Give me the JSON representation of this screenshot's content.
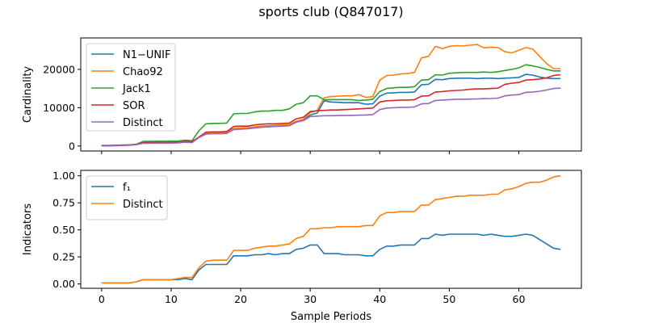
{
  "figure_title": "sports club (Q847017)",
  "shared_xlabel": "Sample Periods",
  "chart_data": [
    {
      "type": "line",
      "title": "",
      "xlabel": "",
      "ylabel": "Cardinality",
      "xlim": [
        -3,
        69
      ],
      "ylim": [
        -1300,
        28200
      ],
      "xticks": [
        0,
        10,
        20,
        30,
        40,
        50,
        60
      ],
      "yticks": [
        0,
        10000,
        20000
      ],
      "ytick_labels": [
        "0",
        "10000",
        "20000"
      ],
      "legend_position": "upper-left",
      "x": [
        0,
        1,
        2,
        3,
        4,
        5,
        6,
        7,
        8,
        9,
        10,
        11,
        12,
        13,
        14,
        15,
        16,
        17,
        18,
        19,
        20,
        21,
        22,
        23,
        24,
        25,
        26,
        27,
        28,
        29,
        30,
        31,
        32,
        33,
        34,
        35,
        36,
        37,
        38,
        39,
        40,
        41,
        42,
        43,
        44,
        45,
        46,
        47,
        48,
        49,
        50,
        51,
        52,
        53,
        54,
        55,
        56,
        57,
        58,
        59,
        60,
        61,
        62,
        63,
        64,
        65,
        66
      ],
      "series": [
        {
          "name": "N1−UNIF",
          "color": "#1f77b4",
          "values": [
            100,
            100,
            150,
            200,
            250,
            400,
            900,
            900,
            950,
            950,
            950,
            1000,
            1200,
            1100,
            2300,
            3300,
            3400,
            3400,
            3500,
            4500,
            4600,
            4700,
            4900,
            5100,
            5200,
            5300,
            5400,
            5500,
            6300,
            6700,
            8100,
            8600,
            11800,
            11500,
            11400,
            11300,
            11300,
            11300,
            10900,
            11000,
            13000,
            13800,
            13900,
            14000,
            14000,
            14100,
            16000,
            16100,
            17400,
            17300,
            17600,
            17700,
            17700,
            17700,
            17600,
            17700,
            17700,
            17600,
            17700,
            17800,
            17900,
            18700,
            18500,
            18000,
            17700,
            17600,
            17600
          ]
        },
        {
          "name": "Chao92",
          "color": "#ff7f0e",
          "values": [
            100,
            100,
            150,
            200,
            250,
            450,
            900,
            900,
            950,
            950,
            950,
            1000,
            1200,
            1100,
            2400,
            3400,
            3500,
            3500,
            3600,
            4600,
            4700,
            4800,
            5000,
            5200,
            5300,
            5400,
            5500,
            5600,
            6500,
            7000,
            8700,
            9300,
            12600,
            12900,
            13000,
            13100,
            13100,
            13400,
            12700,
            12900,
            17200,
            18400,
            18500,
            18800,
            18900,
            19200,
            23000,
            23400,
            26000,
            25400,
            26000,
            26200,
            26100,
            26300,
            26500,
            25600,
            25800,
            25700,
            24600,
            24300,
            25000,
            25700,
            25300,
            23400,
            21500,
            20200,
            20200
          ]
        },
        {
          "name": "Jack1",
          "color": "#2ca02c",
          "values": [
            150,
            150,
            200,
            250,
            300,
            500,
            1200,
            1200,
            1250,
            1250,
            1250,
            1300,
            1500,
            1400,
            4000,
            5800,
            5900,
            5900,
            6000,
            8400,
            8500,
            8500,
            8900,
            9100,
            9100,
            9300,
            9300,
            9700,
            10900,
            11300,
            13100,
            13100,
            12100,
            12100,
            12100,
            12100,
            12100,
            11900,
            12000,
            12200,
            14200,
            15000,
            15200,
            15300,
            15300,
            15500,
            17200,
            17300,
            18600,
            18500,
            19000,
            19100,
            19200,
            19200,
            19200,
            19300,
            19200,
            19400,
            19700,
            20000,
            20400,
            21200,
            20900,
            20500,
            20000,
            19600,
            19600
          ]
        },
        {
          "name": "SOR",
          "color": "#d62728",
          "values": [
            100,
            100,
            150,
            200,
            250,
            400,
            900,
            900,
            950,
            950,
            950,
            1000,
            1200,
            1100,
            2300,
            3600,
            3700,
            3700,
            3800,
            5100,
            5200,
            5200,
            5500,
            5700,
            5800,
            5800,
            5900,
            6000,
            7100,
            7500,
            9000,
            9200,
            9300,
            9400,
            9400,
            9500,
            9600,
            9700,
            9800,
            9900,
            11500,
            11800,
            11900,
            12000,
            12000,
            12100,
            13000,
            13100,
            14100,
            14200,
            14400,
            14500,
            14600,
            14800,
            14900,
            14900,
            15000,
            15100,
            16100,
            16400,
            16600,
            17200,
            17300,
            17500,
            17800,
            18400,
            18600
          ]
        },
        {
          "name": "Distinct",
          "color": "#9467bd",
          "values": [
            50,
            50,
            100,
            150,
            200,
            350,
            700,
            700,
            750,
            750,
            750,
            800,
            1000,
            900,
            2200,
            3100,
            3200,
            3200,
            3300,
            4300,
            4400,
            4500,
            4700,
            4900,
            5000,
            5100,
            5200,
            5300,
            6200,
            6600,
            7700,
            7800,
            7900,
            7900,
            7950,
            8000,
            8000,
            8050,
            8100,
            8200,
            9500,
            9900,
            10000,
            10100,
            10100,
            10200,
            11000,
            11100,
            11900,
            12000,
            12100,
            12200,
            12200,
            12250,
            12300,
            12350,
            12400,
            12500,
            13100,
            13300,
            13400,
            14000,
            14100,
            14300,
            14600,
            15000,
            15100
          ]
        }
      ]
    },
    {
      "type": "line",
      "title": "",
      "xlabel": "Sample Periods",
      "ylabel": "Indicators",
      "xlim": [
        -3,
        69
      ],
      "ylim": [
        -0.04,
        1.05
      ],
      "xticks": [
        0,
        10,
        20,
        30,
        40,
        50,
        60
      ],
      "xtick_labels": [
        "0",
        "10",
        "20",
        "30",
        "40",
        "50",
        "60"
      ],
      "yticks": [
        0.0,
        0.25,
        0.5,
        0.75,
        1.0
      ],
      "ytick_labels": [
        "0.00",
        "0.25",
        "0.50",
        "0.75",
        "1.00"
      ],
      "legend_position": "upper-left",
      "x": [
        0,
        1,
        2,
        3,
        4,
        5,
        6,
        7,
        8,
        9,
        10,
        11,
        12,
        13,
        14,
        15,
        16,
        17,
        18,
        19,
        20,
        21,
        22,
        23,
        24,
        25,
        26,
        27,
        28,
        29,
        30,
        31,
        32,
        33,
        34,
        35,
        36,
        37,
        38,
        39,
        40,
        41,
        42,
        43,
        44,
        45,
        46,
        47,
        48,
        49,
        50,
        51,
        52,
        53,
        54,
        55,
        56,
        57,
        58,
        59,
        60,
        61,
        62,
        63,
        64,
        65,
        66
      ],
      "series": [
        {
          "name": "f₁",
          "color": "#1f77b4",
          "values": [
            0.01,
            0.01,
            0.01,
            0.01,
            0.01,
            0.02,
            0.04,
            0.04,
            0.04,
            0.04,
            0.04,
            0.04,
            0.05,
            0.04,
            0.13,
            0.18,
            0.18,
            0.18,
            0.18,
            0.26,
            0.26,
            0.26,
            0.27,
            0.27,
            0.28,
            0.27,
            0.28,
            0.28,
            0.32,
            0.33,
            0.36,
            0.36,
            0.28,
            0.28,
            0.28,
            0.27,
            0.27,
            0.27,
            0.26,
            0.26,
            0.32,
            0.35,
            0.35,
            0.36,
            0.36,
            0.36,
            0.42,
            0.42,
            0.46,
            0.45,
            0.46,
            0.46,
            0.46,
            0.46,
            0.46,
            0.45,
            0.46,
            0.45,
            0.44,
            0.44,
            0.45,
            0.46,
            0.45,
            0.41,
            0.37,
            0.33,
            0.32
          ]
        },
        {
          "name": "Distinct",
          "color": "#ff7f0e",
          "values": [
            0.01,
            0.01,
            0.01,
            0.01,
            0.01,
            0.02,
            0.04,
            0.04,
            0.04,
            0.04,
            0.04,
            0.05,
            0.06,
            0.06,
            0.15,
            0.21,
            0.22,
            0.22,
            0.22,
            0.31,
            0.31,
            0.31,
            0.33,
            0.34,
            0.35,
            0.35,
            0.36,
            0.37,
            0.42,
            0.44,
            0.51,
            0.51,
            0.52,
            0.52,
            0.53,
            0.53,
            0.53,
            0.53,
            0.54,
            0.54,
            0.63,
            0.66,
            0.66,
            0.67,
            0.67,
            0.67,
            0.73,
            0.73,
            0.78,
            0.79,
            0.8,
            0.81,
            0.81,
            0.82,
            0.82,
            0.82,
            0.83,
            0.83,
            0.87,
            0.88,
            0.9,
            0.93,
            0.94,
            0.94,
            0.96,
            0.99,
            1.0
          ]
        }
      ]
    }
  ]
}
